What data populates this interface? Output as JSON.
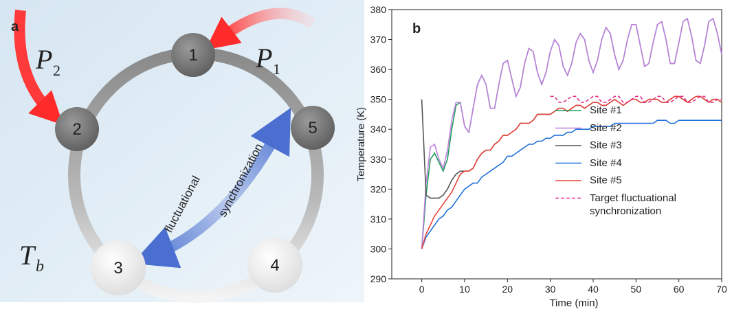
{
  "diagram": {
    "panel_label": "a",
    "nodes": [
      {
        "label": "1"
      },
      {
        "label": "2"
      },
      {
        "label": "3"
      },
      {
        "label": "4"
      },
      {
        "label": "5"
      }
    ],
    "inputs": [
      {
        "symbol": "P",
        "subscript": "1"
      },
      {
        "symbol": "P",
        "subscript": "2"
      }
    ],
    "bath": {
      "symbol": "T",
      "subscript": "b"
    },
    "arrow_labels": [
      "fluctuational",
      "synchronization"
    ]
  },
  "chart_data": {
    "type": "line",
    "panel_label": "b",
    "x_label": "Time (min)",
    "y_label": "Temperature (K)",
    "x": [
      0,
      1,
      2,
      3,
      4,
      5,
      6,
      7,
      8,
      9,
      10,
      11,
      12,
      13,
      14,
      15,
      16,
      17,
      18,
      19,
      20,
      21,
      22,
      23,
      24,
      25,
      26,
      27,
      28,
      29,
      30,
      31,
      32,
      33,
      34,
      35,
      36,
      37,
      38,
      39,
      40,
      41,
      42,
      43,
      44,
      45,
      46,
      47,
      48,
      49,
      50,
      51,
      52,
      53,
      54,
      55,
      56,
      57,
      58,
      59,
      60,
      61,
      62,
      63,
      64,
      65,
      66,
      67,
      68,
      69,
      70
    ],
    "xlim": [
      -7,
      70
    ],
    "xticks": [
      0,
      10,
      20,
      30,
      40,
      50,
      60,
      70
    ],
    "ylim": [
      290,
      380
    ],
    "yticks": [
      290,
      300,
      310,
      320,
      330,
      340,
      350,
      360,
      370,
      380
    ],
    "legend_position": "right",
    "series": [
      {
        "name": "Site #1",
        "color": "#1f9d5c",
        "dashed": false,
        "values": [
          300,
          318,
          330,
          332,
          329,
          326,
          330,
          340,
          348,
          349,
          341,
          339,
          347,
          355,
          358,
          355,
          347,
          347,
          355,
          362,
          363,
          357,
          351,
          354,
          362,
          367,
          366,
          359,
          355,
          359,
          366,
          370,
          368,
          361,
          358,
          362,
          369,
          372,
          370,
          363,
          359,
          363,
          370,
          374,
          372,
          365,
          360,
          363,
          370,
          375,
          375,
          368,
          361,
          362,
          369,
          375,
          376,
          370,
          362,
          362,
          369,
          376,
          377,
          371,
          363,
          362,
          368,
          376,
          377,
          372,
          365
        ]
      },
      {
        "name": "Site #2",
        "color": "#c27fe0",
        "dashed": false,
        "values": [
          300,
          322,
          334,
          335,
          330,
          327,
          333,
          343,
          349,
          349,
          341,
          339,
          347,
          355,
          358,
          355,
          347,
          347,
          355,
          362,
          363,
          357,
          351,
          354,
          362,
          367,
          366,
          359,
          355,
          359,
          366,
          370,
          368,
          361,
          358,
          362,
          369,
          372,
          370,
          363,
          359,
          363,
          370,
          374,
          372,
          365,
          360,
          363,
          370,
          375,
          375,
          368,
          361,
          362,
          369,
          375,
          376,
          370,
          362,
          362,
          369,
          376,
          377,
          371,
          363,
          362,
          368,
          376,
          377,
          372,
          365
        ]
      },
      {
        "name": "Site #3",
        "color": "#555555",
        "dashed": false,
        "values": [
          350,
          318,
          317,
          317,
          317,
          318,
          320,
          323,
          325,
          326,
          326,
          326,
          327,
          330,
          332,
          333,
          333,
          335,
          336,
          338,
          338,
          339,
          340,
          342,
          342,
          342,
          343,
          345,
          345,
          345,
          345,
          346,
          347,
          347,
          346,
          347,
          348,
          348,
          347,
          348,
          349,
          349,
          348,
          348,
          349,
          350,
          349,
          348,
          349,
          350,
          350,
          349,
          349,
          350,
          350,
          350,
          349,
          349,
          350,
          351,
          351,
          350,
          349,
          350,
          351,
          351,
          350,
          349,
          350,
          350,
          349
        ]
      },
      {
        "name": "Site #4",
        "color": "#1f6fd8",
        "dashed": false,
        "values": [
          300,
          304,
          306,
          308,
          310,
          311,
          313,
          314,
          316,
          318,
          320,
          321,
          322,
          322,
          324,
          325,
          326,
          327,
          328,
          329,
          331,
          331,
          332,
          333,
          334,
          335,
          335,
          336,
          336,
          337,
          337,
          338,
          338,
          338,
          339,
          339,
          340,
          340,
          340,
          340,
          341,
          341,
          341,
          341,
          341,
          342,
          342,
          342,
          342,
          342,
          342,
          342,
          342,
          342,
          342,
          343,
          343,
          343,
          342,
          342,
          343,
          343,
          343,
          343,
          343,
          343,
          343,
          343,
          343,
          343,
          343
        ]
      },
      {
        "name": "Site #5",
        "color": "#e8453c",
        "dashed": false,
        "values": [
          300,
          305,
          308,
          311,
          313,
          315,
          317,
          319,
          322,
          325,
          326,
          326,
          327,
          330,
          332,
          333,
          333,
          335,
          336,
          338,
          338,
          339,
          340,
          342,
          342,
          342,
          343,
          345,
          345,
          345,
          345,
          346,
          347,
          347,
          346,
          347,
          348,
          348,
          347,
          348,
          349,
          349,
          348,
          348,
          349,
          350,
          349,
          348,
          349,
          350,
          350,
          349,
          349,
          350,
          350,
          350,
          349,
          349,
          350,
          351,
          351,
          350,
          349,
          350,
          351,
          351,
          350,
          349,
          350,
          350,
          349
        ]
      },
      {
        "name": "Target fluctuational synchronization",
        "color": "#e0308a",
        "dashed": true,
        "values": [
          null,
          null,
          null,
          null,
          null,
          null,
          null,
          null,
          null,
          null,
          null,
          null,
          null,
          null,
          null,
          null,
          null,
          null,
          null,
          null,
          null,
          null,
          null,
          null,
          null,
          null,
          null,
          null,
          null,
          null,
          351,
          351,
          349,
          349,
          350,
          351,
          351,
          349,
          349,
          350,
          351,
          351,
          349,
          349,
          350,
          351,
          351,
          349,
          349,
          350,
          351,
          351,
          349,
          349,
          350,
          351,
          351,
          349,
          349,
          350,
          351,
          351,
          349,
          349,
          350,
          351,
          351,
          349,
          349,
          350,
          350
        ]
      }
    ]
  }
}
